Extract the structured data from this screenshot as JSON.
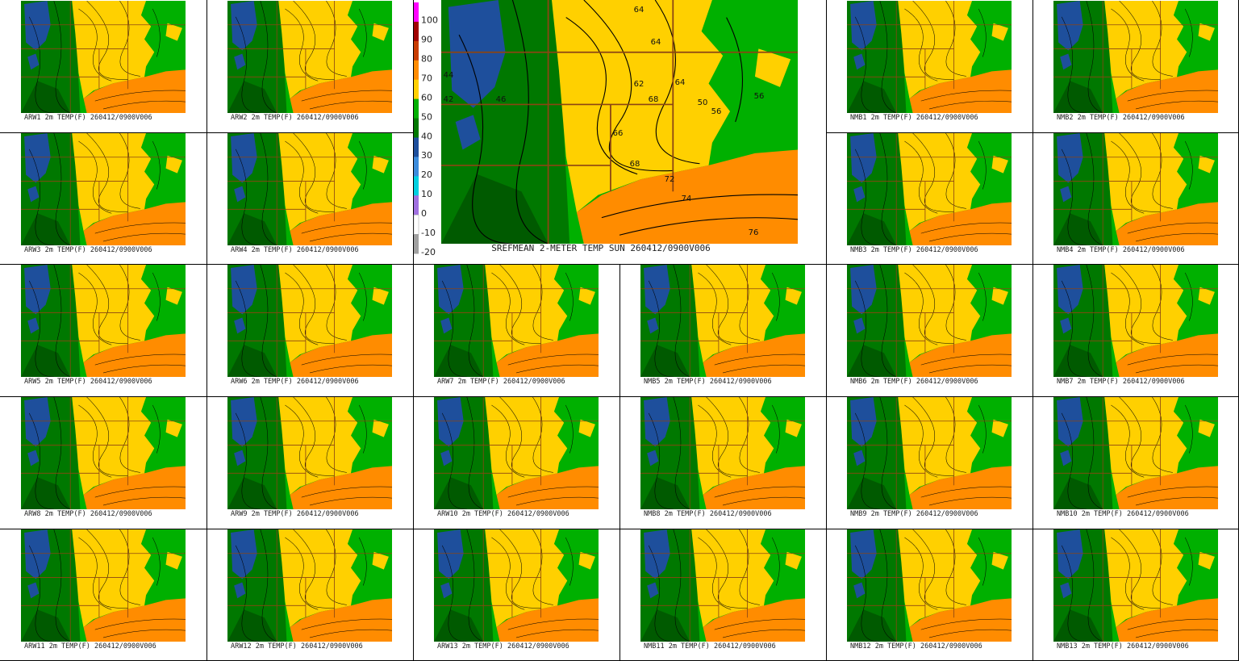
{
  "main_panel": {
    "caption": "SREFMEAN 2-METER TEMP SUN 260412/0900V006",
    "contour_labels": [
      "64",
      "64",
      "62",
      "64",
      "68",
      "66",
      "68",
      "72",
      "74",
      "76",
      "56",
      "56",
      "50",
      "44",
      "42",
      "46"
    ]
  },
  "colorbar": {
    "labels": [
      100,
      90,
      80,
      70,
      60,
      50,
      40,
      30,
      20,
      10,
      0,
      -10,
      -20
    ],
    "colors": [
      "#ff00ff",
      "#a00000",
      "#c83c00",
      "#ff8c00",
      "#ffd000",
      "#00b000",
      "#007800",
      "#1e4f9c",
      "#3c8cdc",
      "#00d0e0",
      "#a070e0",
      "#ffffff",
      "#a0a0a0"
    ]
  },
  "panels": [
    {
      "caption": "ARW1 2m TEMP(F) 260412/0900V006"
    },
    {
      "caption": "ARW2 2m TEMP(F) 260412/0900V006"
    },
    {
      "caption": "NMB1 2m TEMP(F) 260412/0900V006"
    },
    {
      "caption": "NMB2 2m TEMP(F) 260412/0900V006"
    },
    {
      "caption": "ARW3 2m TEMP(F) 260412/0900V006"
    },
    {
      "caption": "ARW4 2m TEMP(F) 260412/0900V006"
    },
    {
      "caption": "NMB3 2m TEMP(F) 260412/0900V006"
    },
    {
      "caption": "NMB4 2m TEMP(F) 260412/0900V006"
    },
    {
      "caption": "ARW5 2m TEMP(F) 260412/0900V006"
    },
    {
      "caption": "ARW6 2m TEMP(F) 260412/0900V006"
    },
    {
      "caption": "ARW7 2m TEMP(F) 260412/0900V006"
    },
    {
      "caption": "NMB5 2m TEMP(F) 260412/0900V006"
    },
    {
      "caption": "NMB6 2m TEMP(F) 260412/0900V006"
    },
    {
      "caption": "NMB7 2m TEMP(F) 260412/0900V006"
    },
    {
      "caption": "ARW8 2m TEMP(F) 260412/0900V006"
    },
    {
      "caption": "ARW9 2m TEMP(F) 260412/0900V006"
    },
    {
      "caption": "ARW10 2m TEMP(F) 260412/0900V006"
    },
    {
      "caption": "NMB8 2m TEMP(F) 260412/0900V006"
    },
    {
      "caption": "NMB9 2m TEMP(F) 260412/0900V006"
    },
    {
      "caption": "NMB10 2m TEMP(F) 260412/0900V006"
    },
    {
      "caption": "ARW11 2m TEMP(F) 260412/0900V006"
    },
    {
      "caption": "ARW12 2m TEMP(F) 260412/0900V006"
    },
    {
      "caption": "ARW13 2m TEMP(F) 260412/0900V006"
    },
    {
      "caption": "NMB11 2m TEMP(F) 260412/0900V006"
    },
    {
      "caption": "NMB12 2m TEMP(F) 260412/0900V006"
    },
    {
      "caption": "NMB13 2m TEMP(F) 260412/0900V006"
    }
  ]
}
